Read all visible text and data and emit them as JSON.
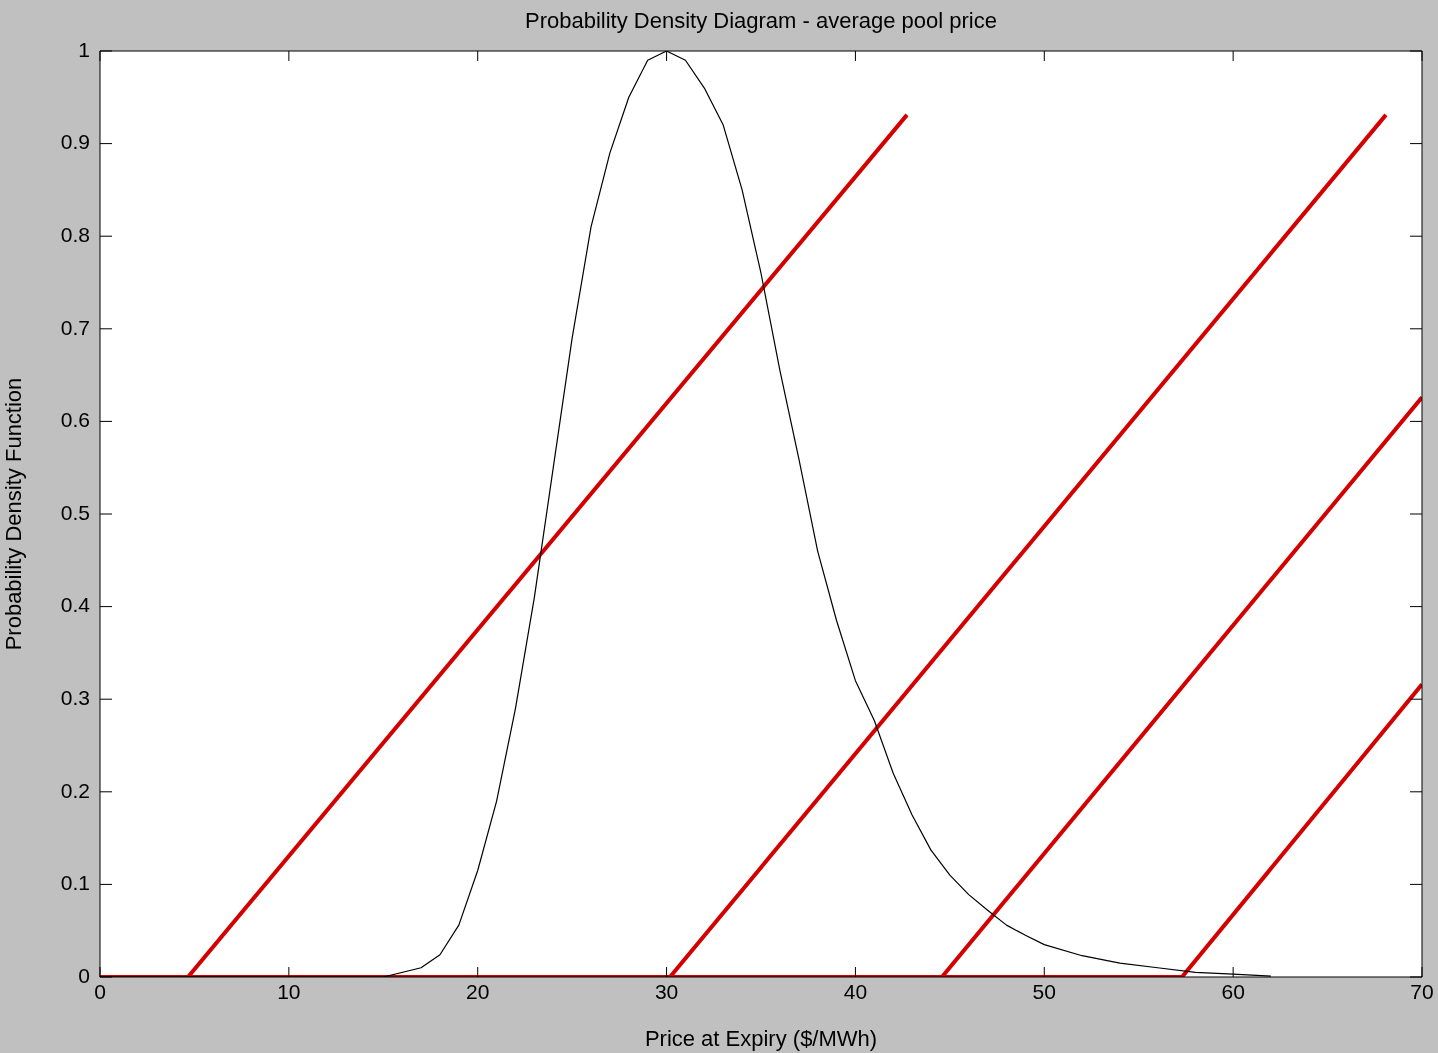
{
  "chart_data": {
    "type": "line",
    "title": "Probability Density Diagram - average pool price",
    "xlabel": "Price at Expiry ($/MWh)",
    "ylabel": "Probability Density Function",
    "xlim": [
      0,
      70
    ],
    "ylim": [
      0,
      1
    ],
    "xticks": [
      0,
      10,
      20,
      30,
      40,
      50,
      60,
      70
    ],
    "yticks": [
      0,
      0.1,
      0.2,
      0.3,
      0.4,
      0.5,
      0.6,
      0.7,
      0.8,
      0.9,
      1
    ],
    "grid": false,
    "legend": false,
    "marker": "none",
    "line_style": "solid",
    "series": [
      {
        "color": "#000000",
        "x": [
          0,
          5,
          10,
          15,
          17,
          18,
          19,
          20,
          21,
          22,
          23,
          24,
          25,
          26,
          27,
          28,
          29,
          30,
          31,
          32,
          33,
          34,
          35,
          36,
          37,
          38,
          39,
          40,
          41,
          42,
          43,
          44,
          45,
          46,
          47,
          48,
          49,
          50,
          52,
          54,
          56,
          58,
          60,
          62
        ],
        "values": [
          0,
          0,
          0,
          0,
          0.01,
          0.024,
          0.056,
          0.115,
          0.19,
          0.29,
          0.41,
          0.55,
          0.69,
          0.81,
          0.89,
          0.95,
          0.99,
          1,
          0.99,
          0.96,
          0.92,
          0.85,
          0.76,
          0.655,
          0.56,
          0.46,
          0.385,
          0.32,
          0.277,
          0.22,
          0.175,
          0.137,
          0.11,
          0.089,
          0.072,
          0.056,
          0.045,
          0.035,
          0.023,
          0.015,
          0.01,
          0.005,
          0.003,
          0.001
        ]
      },
      {
        "color": "#d40000",
        "x": [
          0,
          4.66,
          42.73
        ],
        "values": [
          0,
          0,
          0.931
        ]
      },
      {
        "color": "#d40000",
        "x": [
          0,
          30.18,
          68.09
        ],
        "values": [
          0,
          0,
          0.931
        ]
      },
      {
        "color": "#d40000",
        "x": [
          0,
          44.58,
          70
        ],
        "values": [
          0,
          0,
          0.626
        ]
      },
      {
        "color": "#d40000",
        "x": [
          0,
          57.29,
          70
        ],
        "values": [
          0,
          0,
          0.316
        ]
      }
    ]
  }
}
